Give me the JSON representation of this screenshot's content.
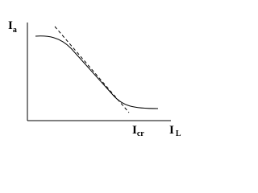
{
  "labels": {
    "y_axis": {
      "main": "I",
      "sub": "a"
    },
    "critical": {
      "main": "I",
      "sub": "cr"
    },
    "x_axis": {
      "main": "I",
      "sub": "L"
    }
  }
}
